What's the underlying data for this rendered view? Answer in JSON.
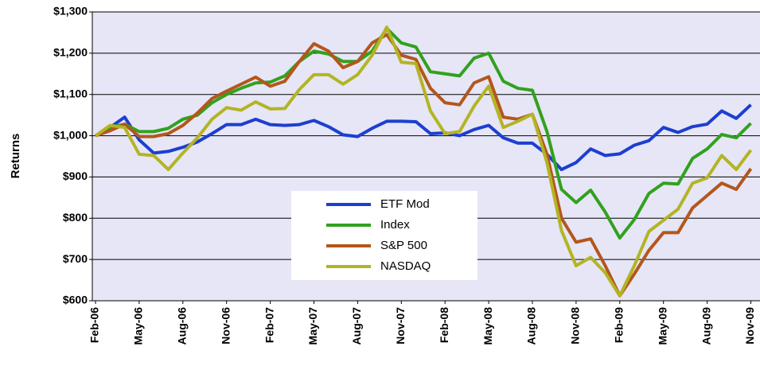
{
  "chart_data": {
    "type": "line",
    "y_label": "Returns",
    "categories": [
      "Feb-06",
      null,
      null,
      "May-06",
      null,
      null,
      "Aug-06",
      null,
      null,
      "Nov-06",
      null,
      null,
      "Feb-07",
      null,
      null,
      "May-07",
      null,
      null,
      "Aug-07",
      null,
      null,
      "Nov-07",
      null,
      null,
      "Feb-08",
      null,
      null,
      "May-08",
      null,
      null,
      "Aug-08",
      null,
      null,
      "Nov-08",
      null,
      null,
      "Feb-09",
      null,
      null,
      "May-09",
      null,
      null,
      "Aug-09",
      null,
      null,
      "Nov-09"
    ],
    "series": [
      {
        "name": "ETF Mod",
        "color": "#1c3fd0",
        "values": [
          1000,
          1020,
          1045,
          990,
          958,
          962,
          972,
          985,
          1005,
          1027,
          1027,
          1040,
          1027,
          1025,
          1027,
          1037,
          1022,
          1002,
          998,
          1018,
          1035,
          1035,
          1034,
          1005,
          1007,
          1000,
          1015,
          1025,
          995,
          982,
          982,
          955,
          918,
          935,
          968,
          952,
          956,
          977,
          988,
          1020,
          1008,
          1022,
          1028,
          1060,
          1042,
          1075
        ]
      },
      {
        "name": "Index",
        "color": "#32a11e",
        "values": [
          1000,
          1020,
          1028,
          1010,
          1010,
          1018,
          1040,
          1050,
          1080,
          1100,
          1115,
          1128,
          1130,
          1145,
          1180,
          1205,
          1198,
          1180,
          1180,
          1205,
          1260,
          1225,
          1215,
          1155,
          1150,
          1145,
          1188,
          1200,
          1132,
          1115,
          1110,
          1010,
          870,
          838,
          868,
          815,
          752,
          797,
          860,
          885,
          883,
          945,
          968,
          1003,
          995,
          1030
        ]
      },
      {
        "name": "S&P 500",
        "color": "#b4561c",
        "values": [
          1000,
          1012,
          1028,
          998,
          998,
          1005,
          1025,
          1055,
          1090,
          1108,
          1125,
          1142,
          1120,
          1132,
          1180,
          1223,
          1205,
          1165,
          1180,
          1225,
          1245,
          1195,
          1185,
          1115,
          1080,
          1075,
          1128,
          1143,
          1045,
          1040,
          1052,
          955,
          800,
          742,
          750,
          685,
          612,
          665,
          722,
          765,
          765,
          825,
          855,
          885,
          870,
          920
        ]
      },
      {
        "name": "NASDAQ",
        "color": "#b3b424",
        "values": [
          1000,
          1025,
          1020,
          955,
          952,
          918,
          958,
          995,
          1040,
          1068,
          1062,
          1082,
          1065,
          1066,
          1112,
          1148,
          1148,
          1125,
          1148,
          1195,
          1263,
          1178,
          1175,
          1060,
          1005,
          1010,
          1072,
          1120,
          1020,
          1035,
          1052,
          935,
          770,
          685,
          705,
          668,
          612,
          685,
          768,
          795,
          822,
          885,
          898,
          952,
          918,
          965
        ]
      }
    ],
    "ylim": [
      600,
      1300
    ],
    "yticks": [
      {
        "value": 600,
        "label": "$600"
      },
      {
        "value": 700,
        "label": "$700"
      },
      {
        "value": 800,
        "label": "$800"
      },
      {
        "value": 900,
        "label": "$900"
      },
      {
        "value": 1000,
        "label": "$1,000"
      },
      {
        "value": 1100,
        "label": "$1,100"
      },
      {
        "value": 1200,
        "label": "$1,200"
      },
      {
        "value": 1300,
        "label": "$1,300"
      }
    ],
    "grid": true,
    "legend": "center"
  }
}
